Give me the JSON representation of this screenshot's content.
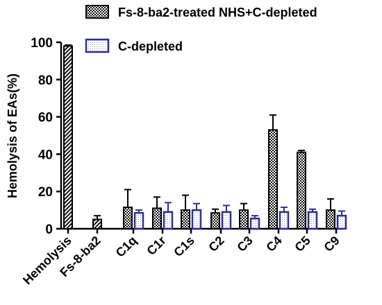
{
  "chart_data": {
    "type": "bar",
    "title": "",
    "xlabel": "",
    "ylabel": "Hemolysis of EAs(%)",
    "ylim": [
      0,
      100
    ],
    "yticks": [
      0,
      20,
      40,
      60,
      80,
      100
    ],
    "legend_position": "top-right",
    "categories": [
      "Hemolysis",
      "Fs-8-ba2",
      "C1q",
      "C1r",
      "C1s",
      "C2",
      "C3",
      "C4",
      "C5",
      "C9"
    ],
    "series": [
      {
        "name": "Fs-8-ba2-treated NHS+C-depleted",
        "pattern": "checkered",
        "color": "#000000",
        "values": [
          98,
          null,
          11.5,
          11,
          10,
          8.5,
          10,
          53,
          41,
          10
        ],
        "errors": [
          0.5,
          null,
          9.5,
          6,
          8,
          2,
          3.5,
          8,
          1,
          6
        ]
      },
      {
        "name": "C-depleted",
        "pattern": "dotted",
        "color": "#2e3192",
        "values": [
          null,
          null,
          8.5,
          9,
          10,
          9,
          5.5,
          9,
          9,
          7
        ],
        "errors": [
          null,
          null,
          1.5,
          5,
          3.5,
          3.5,
          1.5,
          2.5,
          1.5,
          2.5
        ]
      }
    ],
    "singles": [
      {
        "category": "Hemolysis",
        "value": 98,
        "error": 0.5,
        "pattern": "diagonal-hatch"
      },
      {
        "category": "Fs-8-ba2",
        "value": 5,
        "error": 2,
        "pattern": "diagonal-hatch"
      }
    ]
  }
}
